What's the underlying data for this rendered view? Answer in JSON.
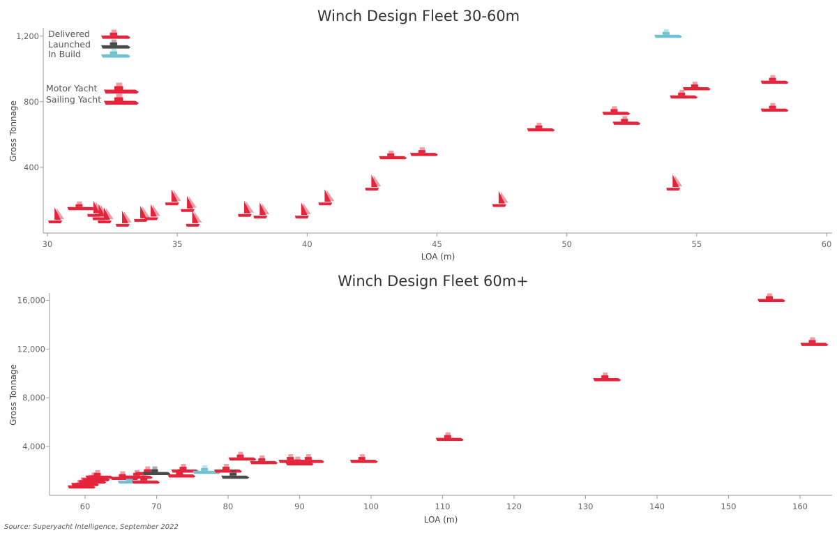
{
  "colors": {
    "delivered": "#e3243b",
    "launched": "#4a4a4a",
    "in_build": "#6fc3d1"
  },
  "legend": {
    "status": [
      {
        "label": "Delivered",
        "status": "delivered"
      },
      {
        "label": "Launched",
        "status": "launched"
      },
      {
        "label": "In Build",
        "status": "in_build"
      }
    ],
    "type": [
      {
        "label": "Motor Yacht",
        "type": "motor"
      },
      {
        "label": "Sailing Yacht",
        "type": "sail"
      }
    ]
  },
  "source": "Source: Superyacht Intelligence, September 2022",
  "chart_data": [
    {
      "type": "scatter",
      "title": "Winch Design Fleet 30-60m",
      "xlabel": "LOA (m)",
      "ylabel": "Gross Tonnage",
      "xlim": [
        30,
        60
      ],
      "ylim": [
        0,
        1250
      ],
      "xticks": [
        30,
        35,
        40,
        45,
        50,
        55,
        60
      ],
      "yticks": [
        400,
        800,
        1200
      ],
      "ytick_labels": [
        "400",
        "800",
        "1,200"
      ],
      "points": [
        {
          "x": 30.3,
          "y": 80,
          "type": "sail",
          "status": "delivered"
        },
        {
          "x": 31.3,
          "y": 150,
          "type": "motor",
          "status": "delivered"
        },
        {
          "x": 31.8,
          "y": 120,
          "type": "sail",
          "status": "delivered"
        },
        {
          "x": 32.0,
          "y": 100,
          "type": "sail",
          "status": "delivered"
        },
        {
          "x": 32.2,
          "y": 80,
          "type": "sail",
          "status": "delivered"
        },
        {
          "x": 32.9,
          "y": 60,
          "type": "sail",
          "status": "delivered"
        },
        {
          "x": 33.6,
          "y": 90,
          "type": "sail",
          "status": "delivered"
        },
        {
          "x": 34.0,
          "y": 100,
          "type": "sail",
          "status": "delivered"
        },
        {
          "x": 34.8,
          "y": 190,
          "type": "sail",
          "status": "delivered"
        },
        {
          "x": 35.4,
          "y": 150,
          "type": "sail",
          "status": "delivered"
        },
        {
          "x": 35.6,
          "y": 60,
          "type": "sail",
          "status": "delivered"
        },
        {
          "x": 37.6,
          "y": 120,
          "type": "sail",
          "status": "delivered"
        },
        {
          "x": 38.2,
          "y": 110,
          "type": "sail",
          "status": "delivered"
        },
        {
          "x": 39.8,
          "y": 110,
          "type": "sail",
          "status": "delivered"
        },
        {
          "x": 40.7,
          "y": 190,
          "type": "sail",
          "status": "delivered"
        },
        {
          "x": 42.5,
          "y": 280,
          "type": "sail",
          "status": "delivered"
        },
        {
          "x": 43.3,
          "y": 460,
          "type": "motor",
          "status": "delivered"
        },
        {
          "x": 44.5,
          "y": 480,
          "type": "motor",
          "status": "delivered"
        },
        {
          "x": 47.4,
          "y": 180,
          "type": "sail",
          "status": "delivered"
        },
        {
          "x": 49.0,
          "y": 630,
          "type": "motor",
          "status": "delivered"
        },
        {
          "x": 51.9,
          "y": 730,
          "type": "motor",
          "status": "delivered"
        },
        {
          "x": 52.3,
          "y": 670,
          "type": "motor",
          "status": "delivered"
        },
        {
          "x": 53.9,
          "y": 1200,
          "type": "motor",
          "status": "in_build"
        },
        {
          "x": 54.1,
          "y": 280,
          "type": "sail",
          "status": "delivered"
        },
        {
          "x": 54.5,
          "y": 830,
          "type": "motor",
          "status": "delivered"
        },
        {
          "x": 55.0,
          "y": 880,
          "type": "motor",
          "status": "delivered"
        },
        {
          "x": 58.0,
          "y": 920,
          "type": "motor",
          "status": "delivered"
        },
        {
          "x": 58.0,
          "y": 750,
          "type": "motor",
          "status": "delivered"
        }
      ]
    },
    {
      "type": "scatter",
      "title": "Winch Design Fleet 60m+",
      "xlabel": "LOA (m)",
      "ylabel": "Gross Tonnage",
      "xlim": [
        55,
        165
      ],
      "ylim": [
        0,
        16600
      ],
      "xticks": [
        60,
        70,
        80,
        90,
        100,
        110,
        120,
        130,
        140,
        150,
        160
      ],
      "yticks": [
        4000,
        8000,
        12000,
        16000
      ],
      "ytick_labels": [
        "4,000",
        "8,000",
        "12,000",
        "16,000"
      ],
      "points": [
        {
          "x": 59.5,
          "y": 700,
          "type": "motor",
          "status": "delivered"
        },
        {
          "x": 60.0,
          "y": 900,
          "type": "motor",
          "status": "delivered"
        },
        {
          "x": 61.0,
          "y": 1100,
          "type": "motor",
          "status": "delivered"
        },
        {
          "x": 61.5,
          "y": 1300,
          "type": "motor",
          "status": "delivered"
        },
        {
          "x": 62.0,
          "y": 1500,
          "type": "motor",
          "status": "delivered"
        },
        {
          "x": 65.5,
          "y": 1400,
          "type": "motor",
          "status": "delivered"
        },
        {
          "x": 66.5,
          "y": 1100,
          "type": "motor",
          "status": "in_build"
        },
        {
          "x": 67.5,
          "y": 1500,
          "type": "motor",
          "status": "delivered"
        },
        {
          "x": 68.5,
          "y": 1100,
          "type": "motor",
          "status": "delivered"
        },
        {
          "x": 69.0,
          "y": 1800,
          "type": "motor",
          "status": "delivered"
        },
        {
          "x": 70.0,
          "y": 1800,
          "type": "motor",
          "status": "launched"
        },
        {
          "x": 73.5,
          "y": 1600,
          "type": "motor",
          "status": "delivered"
        },
        {
          "x": 74.0,
          "y": 2000,
          "type": "motor",
          "status": "delivered"
        },
        {
          "x": 77.0,
          "y": 1900,
          "type": "motor",
          "status": "in_build"
        },
        {
          "x": 80.0,
          "y": 2000,
          "type": "motor",
          "status": "delivered"
        },
        {
          "x": 81.0,
          "y": 1500,
          "type": "motor",
          "status": "launched"
        },
        {
          "x": 82.0,
          "y": 3000,
          "type": "motor",
          "status": "delivered"
        },
        {
          "x": 85.0,
          "y": 2700,
          "type": "motor",
          "status": "delivered"
        },
        {
          "x": 89.0,
          "y": 2800,
          "type": "motor",
          "status": "delivered"
        },
        {
          "x": 90.0,
          "y": 2600,
          "type": "motor",
          "status": "delivered"
        },
        {
          "x": 91.5,
          "y": 2800,
          "type": "motor",
          "status": "delivered"
        },
        {
          "x": 99.0,
          "y": 2800,
          "type": "motor",
          "status": "delivered"
        },
        {
          "x": 111.0,
          "y": 4600,
          "type": "motor",
          "status": "delivered"
        },
        {
          "x": 133.0,
          "y": 9500,
          "type": "motor",
          "status": "delivered"
        },
        {
          "x": 156.0,
          "y": 16000,
          "type": "motor",
          "status": "delivered"
        },
        {
          "x": 162.0,
          "y": 12400,
          "type": "motor",
          "status": "delivered"
        }
      ]
    }
  ]
}
